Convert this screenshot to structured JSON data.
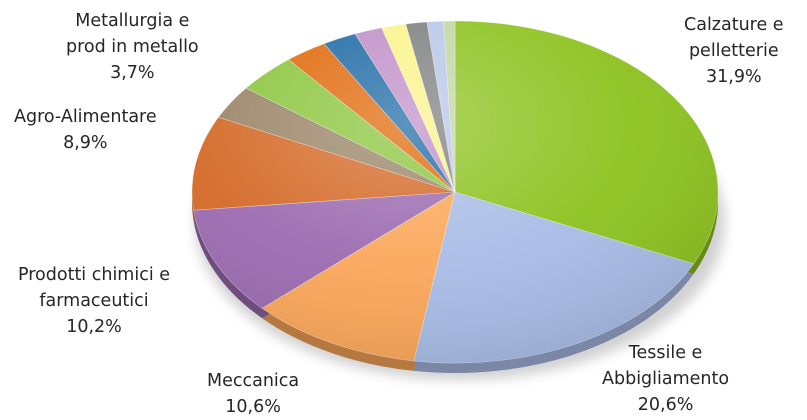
{
  "chart_data": {
    "type": "pie",
    "title": "",
    "slices": [
      {
        "name": "Calzature e pelletterie",
        "value": 31.9,
        "display": "31,9%",
        "color": "#8DC21F",
        "labeled": true
      },
      {
        "name": "Tessile e Abbigliamento",
        "value": 20.6,
        "display": "20,6%",
        "color": "#A9BCE6",
        "labeled": true
      },
      {
        "name": "Meccanica",
        "value": 10.6,
        "display": "10,6%",
        "color": "#FBA75A",
        "labeled": true
      },
      {
        "name": "Prodotti chimici e farmaceutici",
        "value": 10.2,
        "display": "10,2%",
        "color": "#9C6BB0",
        "labeled": true
      },
      {
        "name": "Agro-Alimentare",
        "value": 8.9,
        "display": "8,9%",
        "color": "#D46A28",
        "labeled": true
      },
      {
        "name": "",
        "value": 3.2,
        "display": "",
        "color": "#9B8668",
        "labeled": false
      },
      {
        "name": "Metallurgia e prod in metallo",
        "value": 3.7,
        "display": "3,7%",
        "color": "#8CC63F",
        "labeled": true
      },
      {
        "name": "",
        "value": 2.6,
        "display": "",
        "color": "#E06A0C",
        "labeled": false
      },
      {
        "name": "",
        "value": 2.1,
        "display": "",
        "color": "#1F6BA5",
        "labeled": false
      },
      {
        "name": "",
        "value": 1.7,
        "display": "",
        "color": "#C08FC8",
        "labeled": false
      },
      {
        "name": "",
        "value": 1.5,
        "display": "",
        "color": "#FAF38A",
        "labeled": false
      },
      {
        "name": "",
        "value": 1.3,
        "display": "",
        "color": "#7F8080",
        "labeled": false
      },
      {
        "name": "",
        "value": 1.0,
        "display": "",
        "color": "#B7C7E8",
        "labeled": false
      },
      {
        "name": "",
        "value": 0.7,
        "display": "",
        "color": "#C3D6A2",
        "labeled": false
      }
    ],
    "labels": [
      {
        "slice": 0,
        "line1": "Calzature e",
        "line2": "pelletterie",
        "pct": "31,9%"
      },
      {
        "slice": 1,
        "line1": "Tessile e",
        "line2": "Abbigliamento",
        "pct": "20,6%"
      },
      {
        "slice": 2,
        "line1": "Meccanica",
        "line2": "",
        "pct": "10,6%"
      },
      {
        "slice": 3,
        "line1": "Prodotti chimici e",
        "line2": "farmaceutici",
        "pct": "10,2%"
      },
      {
        "slice": 4,
        "line1": "Agro-Alimentare",
        "line2": "",
        "pct": "8,9%"
      },
      {
        "slice": 6,
        "line1": "Metallurgia e",
        "line2": "prod in metallo",
        "pct": "3,7%"
      }
    ]
  }
}
